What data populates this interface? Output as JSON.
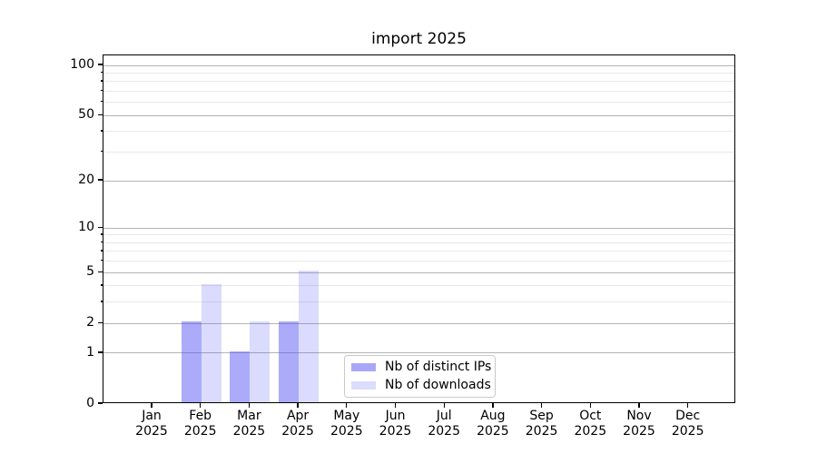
{
  "chart_data": {
    "type": "bar",
    "title": "import 2025",
    "categories": [
      "Jan",
      "Feb",
      "Mar",
      "Apr",
      "May",
      "Jun",
      "Jul",
      "Aug",
      "Sep",
      "Oct",
      "Nov",
      "Dec"
    ],
    "category_year": "2025",
    "series": [
      {
        "name": "Nb of distinct IPs",
        "values": [
          0,
          2,
          1,
          2,
          0,
          0,
          0,
          0,
          0,
          0,
          0,
          0
        ]
      },
      {
        "name": "Nb of downloads",
        "values": [
          0,
          4,
          2,
          5,
          0,
          0,
          0,
          0,
          0,
          0,
          0,
          0
        ]
      }
    ],
    "y_axis": {
      "scale": "log1p",
      "major_ticks": [
        0,
        1,
        2,
        5,
        10,
        20,
        50,
        100
      ],
      "minor_ticks": [
        3,
        4,
        6,
        7,
        8,
        9,
        30,
        40,
        60,
        70,
        80,
        90
      ],
      "range": [
        0,
        115
      ]
    },
    "legend": {
      "position": "lower-center"
    },
    "grid": "both",
    "colors": {
      "bar_distinct_ips": "rgba(76,76,245,0.47)",
      "bar_downloads": "rgba(76,76,245,0.20)",
      "swatch_distinct_ips": "#a9a8f8",
      "swatch_downloads": "#dcdcfc",
      "major_grid": "#b4b4b4",
      "minor_grid": "#e8e8e8",
      "axis": "#000000"
    }
  }
}
